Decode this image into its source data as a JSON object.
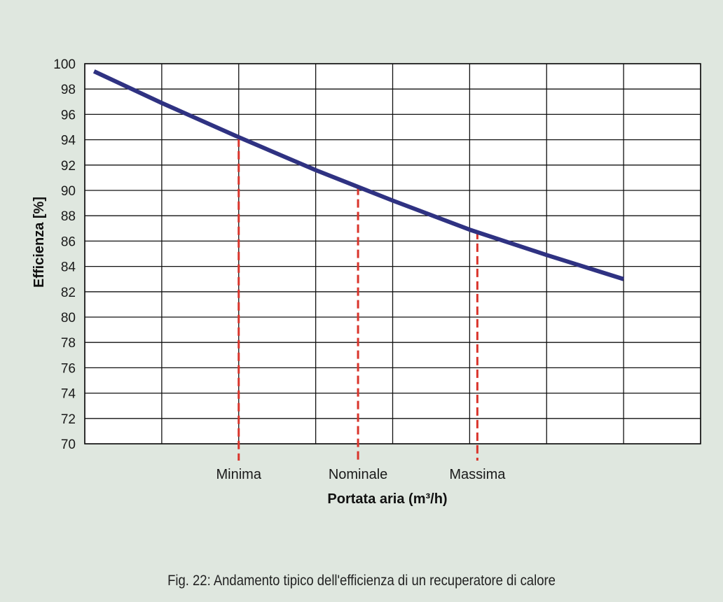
{
  "chart_data": {
    "type": "line",
    "title": "",
    "xlabel": "Portata aria (m³/h)",
    "ylabel": "Efficienza [%]",
    "ylim": [
      70,
      100
    ],
    "yticks": [
      70,
      72,
      74,
      76,
      78,
      80,
      82,
      84,
      86,
      88,
      90,
      92,
      94,
      96,
      98,
      100
    ],
    "x_grid_columns": 8,
    "grid": true,
    "line_color": "#2f3282",
    "marker_color": "#d9342b",
    "series": [
      {
        "x": [
          0.12,
          1,
          2,
          3,
          4,
          5,
          6,
          7
        ],
        "values": [
          99.4,
          96.9,
          94.2,
          91.6,
          89.2,
          86.9,
          84.9,
          83.0
        ]
      }
    ],
    "markers": [
      {
        "label": "Minima",
        "x": 2.0,
        "value": 94.1
      },
      {
        "label": "Nominale",
        "x": 3.55,
        "value": 90.3
      },
      {
        "label": "Massima",
        "x": 5.1,
        "value": 86.8
      }
    ]
  },
  "caption": "Fig. 22: Andamento tipico dell'efficienza di un recuperatore di calore"
}
